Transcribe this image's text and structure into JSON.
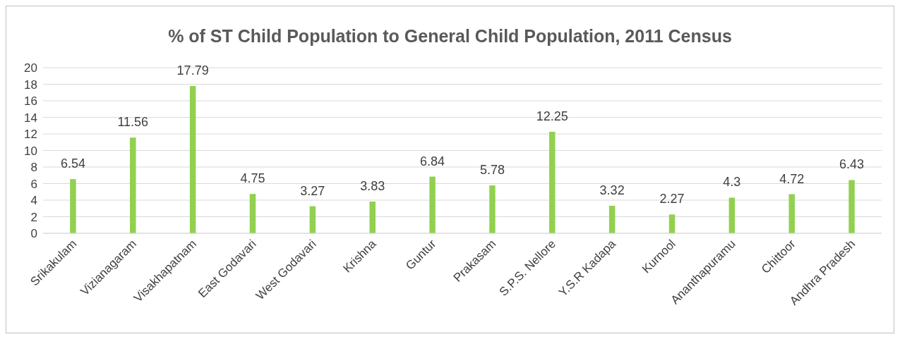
{
  "chart_data": {
    "type": "bar",
    "title": "% of ST Child Population to General Child Population, 2011 Census",
    "categories": [
      "Srikakulam",
      "Vizianagaram",
      "Visakhapatnam",
      "East Godavari",
      "West Godavari",
      "Krishna",
      "Guntur",
      "Prakasam",
      "S.P.S. Nellore",
      "Y.S.R Kadapa",
      "Kurnool",
      "Ananthapuramu",
      "Chittoor",
      "Andhra Pradesh"
    ],
    "values": [
      6.54,
      11.56,
      17.79,
      4.75,
      3.27,
      3.83,
      6.84,
      5.78,
      12.25,
      3.32,
      2.27,
      4.3,
      4.72,
      6.43
    ],
    "color": "#92d050",
    "ylim": [
      0,
      20
    ],
    "yticks": [
      0,
      2,
      4,
      6,
      8,
      10,
      12,
      14,
      16,
      18,
      20
    ],
    "grid": "y",
    "data_labels": true
  }
}
